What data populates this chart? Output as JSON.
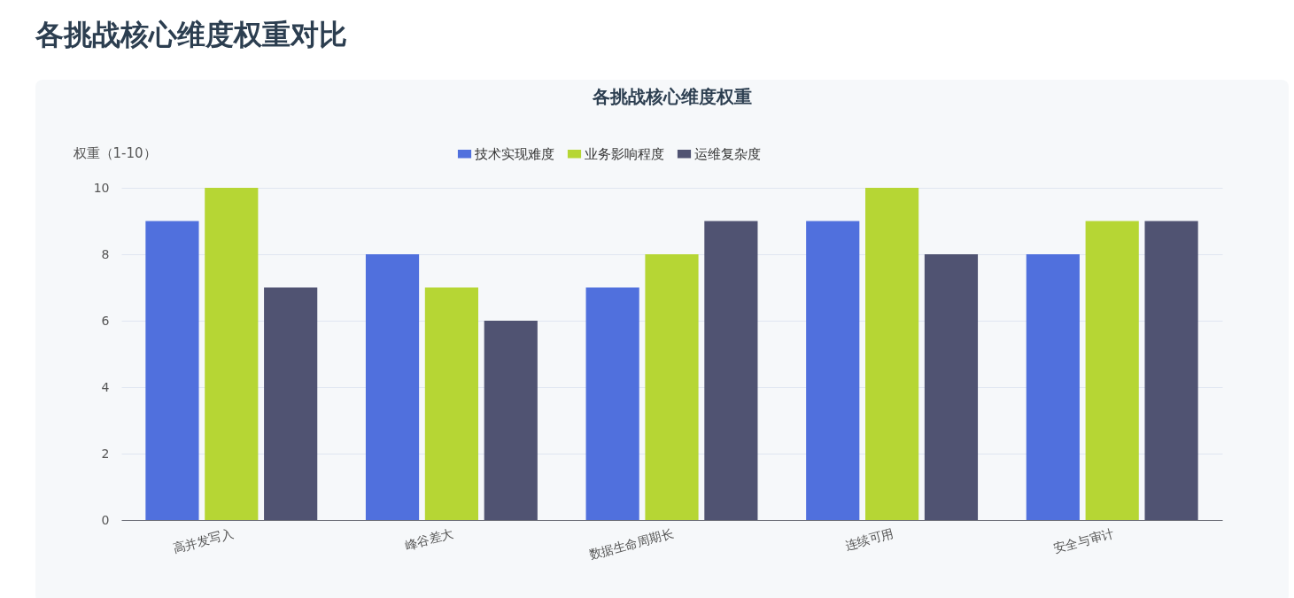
{
  "chart_data": {
    "type": "bar",
    "title": "各挑战核心维度权重对比",
    "subtitle": "各挑战核心维度权重",
    "ylabel": "权重（1-10）",
    "categories": [
      "高并发写入",
      "峰谷差大",
      "数据生命周期长",
      "连续可用",
      "安全与审计"
    ],
    "series": [
      {
        "name": "技术实现难度",
        "color": "#5070dd",
        "values": [
          9,
          8,
          7,
          9,
          8
        ]
      },
      {
        "name": "业务影响程度",
        "color": "#b6d634",
        "values": [
          10,
          7,
          8,
          10,
          9
        ]
      },
      {
        "name": "运维复杂度",
        "color": "#505372",
        "values": [
          7,
          6,
          9,
          8,
          9
        ]
      }
    ],
    "ylim": [
      0,
      10
    ],
    "yticks": [
      0,
      2,
      4,
      6,
      8,
      10
    ],
    "grid": "y",
    "legend": "top"
  }
}
